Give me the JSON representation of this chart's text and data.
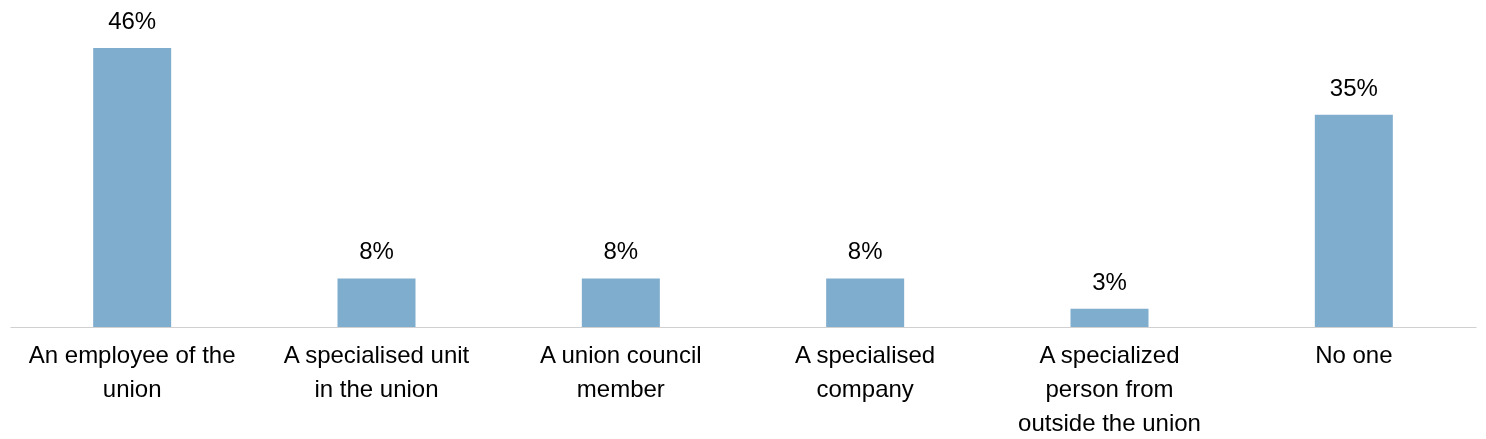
{
  "chart_data": {
    "type": "bar",
    "categories": [
      "An employee of the union",
      "A specialised unit in the union",
      "A union council member",
      "A specialised company",
      "A specialized person from outside the union",
      "No one"
    ],
    "values": [
      46,
      8,
      8,
      8,
      3,
      35
    ],
    "value_labels": [
      "46%",
      "8%",
      "8%",
      "8%",
      "3%",
      "35%"
    ],
    "color": "#7fadcd"
  }
}
